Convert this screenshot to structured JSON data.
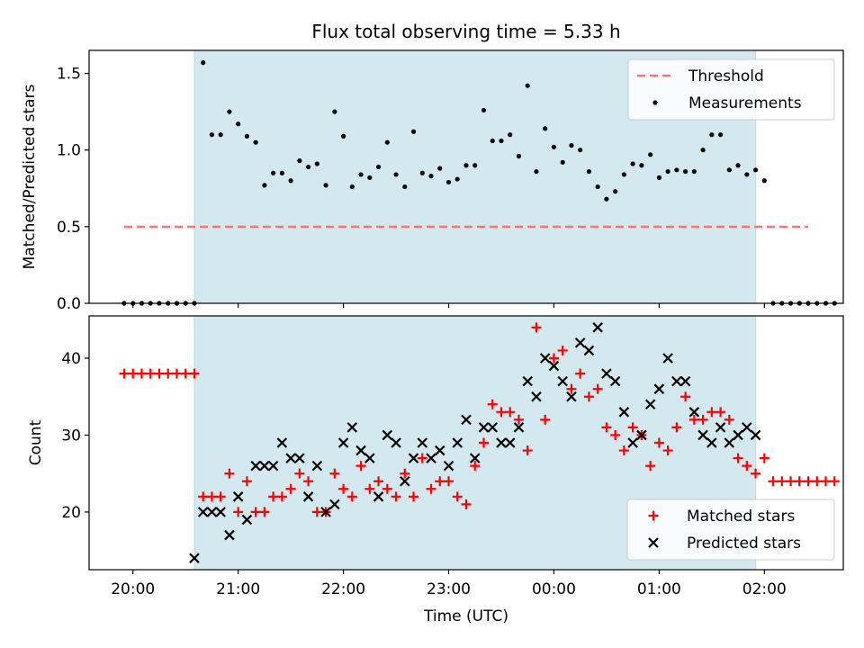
{
  "colors": {
    "shade": "#d3e9ef",
    "threshold": "#ff7070",
    "measurement": "#000000",
    "matched": "#ff0000",
    "predicted": "#000000"
  },
  "chart_data": [
    {
      "type": "scatter",
      "title": "Flux total observing time = 5.33 h",
      "ylabel": "Matched/Predicted stars",
      "xlim": [
        "19:35",
        "02:45"
      ],
      "ylim": [
        0,
        1.65
      ],
      "yticks": [
        0.0,
        0.5,
        1.0,
        1.5
      ],
      "ytick_labels": [
        "0.0",
        "0.5",
        "1.0",
        "1.5"
      ],
      "shaded_span": [
        "20:35",
        "01:55"
      ],
      "legend": {
        "location": "top-right",
        "entries": [
          "Threshold",
          "Measurements"
        ]
      },
      "series": [
        {
          "name": "Threshold",
          "kind": "dashed-line",
          "x": [
            "19:55",
            "02:25"
          ],
          "y": [
            0.5,
            0.5
          ]
        },
        {
          "name": "Measurements",
          "kind": "dots",
          "start": "19:55",
          "step_minutes": 5,
          "values": [
            0,
            0,
            0,
            0,
            0,
            0,
            0,
            0,
            0,
            1.57,
            1.1,
            1.1,
            1.25,
            1.17,
            1.09,
            1.05,
            0.77,
            0.85,
            0.85,
            0.8,
            0.93,
            0.89,
            0.91,
            0.77,
            1.25,
            1.09,
            0.76,
            0.84,
            0.82,
            0.89,
            1.05,
            0.84,
            0.76,
            1.12,
            0.85,
            0.83,
            0.88,
            0.79,
            0.81,
            0.9,
            0.9,
            1.26,
            1.06,
            1.06,
            1.1,
            0.96,
            1.42,
            0.86,
            1.14,
            1.02,
            0.92,
            1.03,
            1.0,
            0.86,
            0.76,
            0.68,
            0.73,
            0.84,
            0.91,
            0.9,
            0.97,
            0.82,
            0.86,
            0.87,
            0.86,
            0.86,
            1.0,
            1.1,
            1.1,
            0.87,
            0.9,
            0.84,
            0.87,
            0.8,
            0,
            0,
            0,
            0,
            0,
            0,
            0,
            0
          ]
        }
      ]
    },
    {
      "type": "scatter",
      "xlabel": "Time (UTC)",
      "ylabel": "Count",
      "xlim": [
        "19:35",
        "02:45"
      ],
      "ylim": [
        12.5,
        45.5
      ],
      "yticks": [
        20,
        30,
        40
      ],
      "ytick_labels": [
        "20",
        "30",
        "40"
      ],
      "xticks": [
        "20:00",
        "21:00",
        "22:00",
        "23:00",
        "00:00",
        "01:00",
        "02:00"
      ],
      "shaded_span": [
        "20:35",
        "01:55"
      ],
      "legend": {
        "location": "bottom-right",
        "entries": [
          "Matched stars",
          "Predicted stars"
        ]
      },
      "series": [
        {
          "name": "Matched stars",
          "marker": "+",
          "start": "19:55",
          "step_minutes": 5,
          "values": [
            38,
            38,
            38,
            38,
            38,
            38,
            38,
            38,
            38,
            22,
            22,
            22,
            25,
            20,
            24,
            20,
            20,
            22,
            22,
            23,
            25,
            24,
            20,
            20,
            25,
            23,
            22,
            26,
            23,
            24,
            23,
            22,
            25,
            22,
            27,
            23,
            24,
            24,
            22,
            21,
            26,
            29,
            34,
            33,
            33,
            32,
            28,
            44,
            32,
            40,
            41,
            36,
            38,
            35,
            36,
            31,
            30,
            28,
            31,
            30,
            26,
            29,
            28,
            31,
            35,
            32,
            32,
            33,
            33,
            32,
            27,
            26,
            25,
            27,
            24,
            24,
            24,
            24,
            24,
            24,
            24,
            24
          ]
        },
        {
          "name": "Predicted stars",
          "marker": "x",
          "start": "20:35",
          "step_minutes": 5,
          "values": [
            14,
            20,
            20,
            20,
            17,
            22,
            19,
            26,
            26,
            26,
            29,
            27,
            27,
            22,
            26,
            20,
            21,
            29,
            31,
            28,
            27,
            22,
            30,
            29,
            24,
            27,
            29,
            27,
            28,
            26,
            29,
            32,
            27,
            31,
            31,
            29,
            29,
            31,
            37,
            35,
            40,
            39,
            37,
            35,
            42,
            41,
            44,
            38,
            37,
            33,
            29,
            30,
            34,
            36,
            40,
            37,
            37,
            33,
            30,
            29,
            31,
            29,
            30,
            31,
            30
          ]
        }
      ]
    }
  ]
}
